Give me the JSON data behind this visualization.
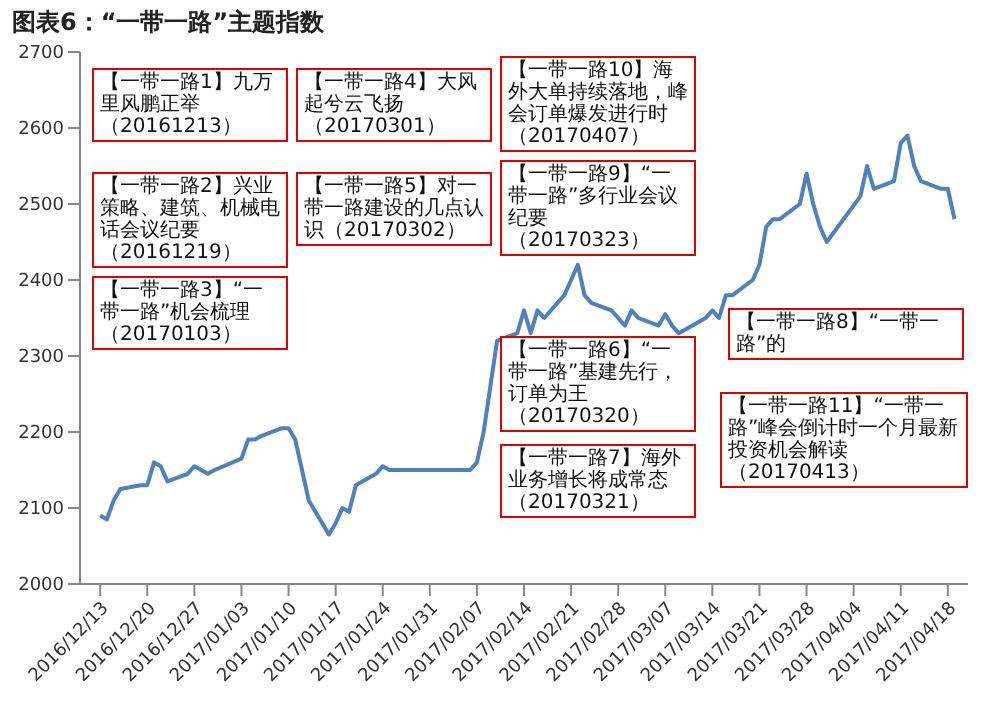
{
  "chart_data": {
    "type": "line",
    "title": "图表6：“一带一路”主题指数",
    "xlim": [
      "2016-12-10",
      "2017-04-21"
    ],
    "xticks": [
      {
        "value": "2016-12-13",
        "label": "2016/12/13"
      },
      {
        "value": "2016-12-20",
        "label": "2016/12/20"
      },
      {
        "value": "2016-12-27",
        "label": "2016/12/27"
      },
      {
        "value": "2017-01-03",
        "label": "2017/01/03"
      },
      {
        "value": "2017-01-10",
        "label": "2017/01/10"
      },
      {
        "value": "2017-01-17",
        "label": "2017/01/17"
      },
      {
        "value": "2017-01-24",
        "label": "2017/01/24"
      },
      {
        "value": "2017-01-31",
        "label": "2017/01/31"
      },
      {
        "value": "2017-02-07",
        "label": "2017/02/07"
      },
      {
        "value": "2017-02-14",
        "label": "2017/02/14"
      },
      {
        "value": "2017-02-21",
        "label": "2017/02/21"
      },
      {
        "value": "2017-02-28",
        "label": "2017/02/28"
      },
      {
        "value": "2017-03-07",
        "label": "2017/03/07"
      },
      {
        "value": "2017-03-14",
        "label": "2017/03/14"
      },
      {
        "value": "2017-03-21",
        "label": "2017/03/21"
      },
      {
        "value": "2017-03-28",
        "label": "2017/03/28"
      },
      {
        "value": "2017-04-04",
        "label": "2017/04/04"
      },
      {
        "value": "2017-04-11",
        "label": "2017/04/11"
      },
      {
        "value": "2017-04-18",
        "label": "2017/04/18"
      }
    ],
    "ylim": [
      2000,
      2700
    ],
    "yticks": [
      2000,
      2100,
      2200,
      2300,
      2400,
      2500,
      2600,
      2700
    ],
    "series": [
      {
        "color": "#4f81bd",
        "x": [
          "2016-12-13",
          "2016-12-14",
          "2016-12-15",
          "2016-12-16",
          "2016-12-19",
          "2016-12-20",
          "2016-12-21",
          "2016-12-22",
          "2016-12-23",
          "2016-12-26",
          "2016-12-27",
          "2016-12-28",
          "2016-12-29",
          "2016-12-30",
          "2017-01-03",
          "2017-01-04",
          "2017-01-05",
          "2017-01-06",
          "2017-01-09",
          "2017-01-10",
          "2017-01-11",
          "2017-01-12",
          "2017-01-13",
          "2017-01-16",
          "2017-01-17",
          "2017-01-18",
          "2017-01-19",
          "2017-01-20",
          "2017-01-23",
          "2017-01-24",
          "2017-01-25",
          "2017-01-26",
          "2017-02-03",
          "2017-02-06",
          "2017-02-07",
          "2017-02-08",
          "2017-02-09",
          "2017-02-10",
          "2017-02-13",
          "2017-02-14",
          "2017-02-15",
          "2017-02-16",
          "2017-02-17",
          "2017-02-20",
          "2017-02-21",
          "2017-02-22",
          "2017-02-23",
          "2017-02-24",
          "2017-02-27",
          "2017-02-28",
          "2017-03-01",
          "2017-03-02",
          "2017-03-03",
          "2017-03-06",
          "2017-03-07",
          "2017-03-08",
          "2017-03-09",
          "2017-03-10",
          "2017-03-13",
          "2017-03-14",
          "2017-03-15",
          "2017-03-16",
          "2017-03-17",
          "2017-03-20",
          "2017-03-21",
          "2017-03-22",
          "2017-03-23",
          "2017-03-24",
          "2017-03-27",
          "2017-03-28",
          "2017-03-29",
          "2017-03-30",
          "2017-03-31",
          "2017-04-05",
          "2017-04-06",
          "2017-04-07",
          "2017-04-10",
          "2017-04-11",
          "2017-04-12",
          "2017-04-13",
          "2017-04-14",
          "2017-04-17",
          "2017-04-18",
          "2017-04-19"
        ],
        "values": [
          2090,
          2085,
          2110,
          2125,
          2130,
          2130,
          2160,
          2155,
          2135,
          2145,
          2155,
          2150,
          2145,
          2150,
          2165,
          2190,
          2190,
          2195,
          2205,
          2205,
          2190,
          2150,
          2110,
          2065,
          2080,
          2100,
          2095,
          2130,
          2145,
          2155,
          2150,
          2150,
          2150,
          2150,
          2160,
          2200,
          2260,
          2320,
          2330,
          2360,
          2330,
          2360,
          2350,
          2380,
          2400,
          2420,
          2380,
          2370,
          2360,
          2350,
          2340,
          2360,
          2350,
          2340,
          2355,
          2340,
          2330,
          2335,
          2350,
          2360,
          2350,
          2380,
          2380,
          2400,
          2420,
          2470,
          2480,
          2480,
          2500,
          2540,
          2500,
          2470,
          2450,
          2510,
          2550,
          2520,
          2530,
          2580,
          2590,
          2550,
          2530,
          2520,
          2520,
          2480
        ]
      }
    ],
    "annotations": [
      "【一带一路1】九万里风鹏正举（20161213）",
      "【一带一路2】兴业策略、建筑、机械电话会议纪要（20161219）",
      "【一带一路3】“一带一路”机会梳理（20170103）",
      "【一带一路4】大风起兮云飞扬（20170301）",
      "【一带一路5】对一带一路建设的几点认识（20170302）",
      "【一带一路6】“一带一路”基建先行，订单为王（20170320）",
      "【一带一路7】海外业务增长将成常态（20170321）",
      "【一带一路8】“一带一路”的",
      "【一带一路9】“一带一路”多行业会议纪要（20170323）",
      "【一带一路10】海外大单持续落地，峰会订单爆发进行时（20170407）",
      "【一带一路11】“一带一路”峰会倒计时一个月最新投资机会解读（20170413）"
    ]
  }
}
